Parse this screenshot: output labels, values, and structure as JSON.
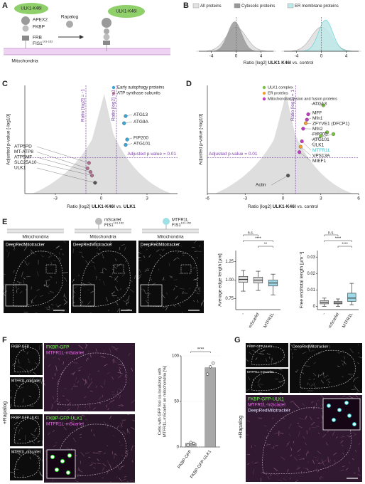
{
  "a": {
    "letter": "A",
    "ulk1": "ULK1-K46I",
    "apex2": "APEX2",
    "fkbp": "FKBP",
    "rapalog": "Rapalog",
    "ulk2": "ULK1-K46I",
    "frb": "FRB",
    "fis1": "FIS1",
    "fis1_sup": "101-152",
    "mitochondria": "Mitochondria"
  },
  "b": {
    "letter": "B",
    "legend": [
      {
        "name": "All proteins",
        "color": "#e3e3e3"
      },
      {
        "name": "Cytosolic proteins",
        "color": "#9a9a9a"
      },
      {
        "name": "ER membrane proteins",
        "color": "#bfe8e8"
      }
    ],
    "xlabel": [
      "Ratio [log2] ",
      "ULK1 K46I",
      " vs. control"
    ],
    "xlim": [
      -6,
      6
    ],
    "xticks": [
      -4,
      0,
      4
    ]
  },
  "c": {
    "letter": "C",
    "legend": [
      {
        "name": "Early autophagy proteins",
        "color": "#3aa6d8"
      },
      {
        "name": "ATP synthase subunits",
        "color": "#b07090"
      }
    ],
    "ylabel": "Adjusted p-value [-log10]",
    "xlabel": [
      "Ratio [log2] ",
      "ULK1-K46I",
      " vs. ",
      "ULK1"
    ],
    "xlim": [
      -5,
      5
    ],
    "ylim": [
      0,
      6
    ],
    "xticks": [
      -3,
      0,
      3
    ],
    "vlines": [
      {
        "value": -1,
        "label": "Ratio [log2] = -1"
      },
      {
        "value": 1,
        "label": "Ratio [log2] = 1"
      }
    ],
    "hline": {
      "value": 2,
      "label": "Adjusted p-value = 0.01"
    },
    "points": [
      {
        "label": "ATG13",
        "x": 1.6,
        "y": 4.3,
        "color": "#3aa6d8"
      },
      {
        "label": "ATG9A",
        "x": 1.5,
        "y": 3.9,
        "color": "#3aa6d8"
      },
      {
        "label": "FIP200",
        "x": 1.7,
        "y": 3.0,
        "color": "#3aa6d8"
      },
      {
        "label": "ATG101",
        "x": 1.6,
        "y": 2.7,
        "color": "#3aa6d8"
      },
      {
        "label": "ATP5PD",
        "x": -0.8,
        "y": 1.7,
        "color": "#b07090"
      },
      {
        "label": "MT-ATP8",
        "x": -0.9,
        "y": 1.4,
        "color": "#b07090"
      },
      {
        "label": "ATP5MF",
        "x": -0.7,
        "y": 1.2,
        "color": "#b07090"
      },
      {
        "label": "SLC25A10",
        "x": -0.6,
        "y": 1.0,
        "color": "#b07090"
      },
      {
        "label": "ULK1",
        "x": -0.4,
        "y": 0.6,
        "color": "#555555"
      }
    ]
  },
  "d": {
    "letter": "D",
    "legend": [
      {
        "name": "ULK1 complex",
        "color": "#7cc242"
      },
      {
        "name": "ER proteins",
        "color": "#f0a030"
      },
      {
        "name": "Mitochondrial fission and fusion proteins",
        "color": "#c03cc0"
      }
    ],
    "ylabel": "Adjusted p-value [-log10]",
    "xlabel": [
      "Ratio [log2] ",
      "ULK1-K46I",
      " vs. control"
    ],
    "xlim": [
      -6,
      6
    ],
    "ylim": [
      0,
      6
    ],
    "xticks": [
      -6,
      -3,
      0,
      3,
      6
    ],
    "vlines": [
      {
        "value": 1,
        "label": "Ratio [log2] = 1"
      }
    ],
    "hline": {
      "value": 2,
      "label": "Adjusted p-value = 0.01"
    },
    "points": [
      {
        "label": "ATG13",
        "x": 3.2,
        "y": 4.9,
        "color": "#7cc242"
      },
      {
        "label": "MFF",
        "x": 2.0,
        "y": 4.4,
        "color": "#c03cc0"
      },
      {
        "label": "Mfn1",
        "x": 1.9,
        "y": 4.1,
        "color": "#c03cc0"
      },
      {
        "label": "ZFYVE1 (DFCP1)",
        "x": 1.8,
        "y": 3.9,
        "color": "#f0a030"
      },
      {
        "label": "Mfn2",
        "x": 1.6,
        "y": 3.6,
        "color": "#c03cc0"
      },
      {
        "label": "FIP200",
        "x": 3.5,
        "y": 3.4,
        "color": "#7cc242"
      },
      {
        "label": "ATG101",
        "x": 4.0,
        "y": 3.3,
        "color": "#7cc242"
      },
      {
        "label": "ULK1",
        "x": 3.0,
        "y": 3.2,
        "color": "#7cc242"
      },
      {
        "label": "MTFR1L",
        "x": 1.5,
        "y": 2.9,
        "color": "#c03cc0",
        "label_color": "#3cc0d0"
      },
      {
        "label": "VPS13A",
        "x": 1.4,
        "y": 2.6,
        "color": "#f0a030"
      },
      {
        "label": "MIEF1",
        "x": 1.3,
        "y": 2.3,
        "color": "#c03cc0"
      },
      {
        "label": "Actin",
        "x": 0.4,
        "y": 1.0,
        "color": "#555555"
      }
    ]
  },
  "e": {
    "letter": "E",
    "mitochondria": [
      "Mitochondria",
      "Mitochondria",
      "Mitochondria"
    ],
    "constructs": [
      {
        "name": "mScarlet",
        "fis1": "FIS1",
        "sup": "101-152"
      },
      {
        "name": "MTFR1L",
        "fis1": "FIS1",
        "sup": "101-152"
      }
    ],
    "images": [
      "DeepRedMitotracker",
      "DeepRedMitotracker",
      "DeepRedMitotracker"
    ],
    "box1": {
      "ylabel": "Average edge length [µm]",
      "categories": [
        "-",
        "mScarlet",
        "MTFR1L"
      ],
      "colors": [
        "#d9d9d9",
        "#d9d9d9",
        "#9fd8e6"
      ],
      "ylim": [
        0.6,
        1.4
      ],
      "yticks": [
        0.75,
        {
          "value": 1,
          "label": "1.00"
        },
        1.25
      ],
      "significance": [
        "n.s.",
        "****",
        "**"
      ],
      "boxes": [
        {
          "low": 0.85,
          "q1": 0.97,
          "median": 1.01,
          "q3": 1.05,
          "high": 1.13
        },
        {
          "low": 0.86,
          "q1": 0.96,
          "median": 1.0,
          "q3": 1.04,
          "high": 1.12
        },
        {
          "low": 0.8,
          "q1": 0.92,
          "median": 0.96,
          "q3": 1.0,
          "high": 1.08
        }
      ]
    },
    "box2": {
      "ylabel": "Free end/total length [µm⁻¹]",
      "categories": [
        "-",
        "mScarlet",
        "MTFR1L"
      ],
      "colors": [
        "#d9d9d9",
        "#d9d9d9",
        "#9fd8e6"
      ],
      "ylim": [
        -0.002,
        0.034
      ],
      "yticks": [
        0,
        0.01,
        0.02,
        0.03
      ],
      "significance": [
        "n.s.",
        "****",
        "****"
      ],
      "boxes": [
        {
          "low": 0,
          "q1": 0.0015,
          "median": 0.0025,
          "q3": 0.0035,
          "high": 0.005
        },
        {
          "low": 0,
          "q1": 0.0015,
          "median": 0.002,
          "q3": 0.003,
          "high": 0.0045
        },
        {
          "low": 0.001,
          "q1": 0.003,
          "median": 0.005,
          "q3": 0.008,
          "high": 0.014
        }
      ]
    }
  },
  "f": {
    "letter": "F",
    "rapalog": "+Rapalog",
    "small": [
      "FKBP-GFP",
      "MTFR1L-mScarlet",
      "FKBP-GFP-ULK1",
      "MTFR1L-mScarlet"
    ],
    "overlay1": [
      "FKBP-GFP",
      "MTFR1L-mScarlet"
    ],
    "overlay2": [
      "FKBP-GFP-ULK1",
      "MTFR1L-mScarlet"
    ],
    "bar": {
      "type": "bar",
      "ylabel": [
        "Cells with GFP foci co-localizing with",
        "MTFR1L-mScarlet on mitochondria [%]"
      ],
      "categories": [
        "FKBP-GFP",
        "FKBP-GFP-ULK1"
      ],
      "values": [
        4,
        87
      ],
      "points": [
        [
          2,
          5,
          4
        ],
        [
          80,
          88,
          92
        ]
      ],
      "color": "#a8a8a8",
      "ylim": [
        0,
        100
      ],
      "yticks": [
        0,
        50,
        100
      ],
      "significance": "****"
    }
  },
  "g": {
    "letter": "G",
    "rapalog": "+Rapalog",
    "small": [
      "FKBP-GFP-ULK1",
      "MTFR1L-mScarlet"
    ],
    "top": "DeepRedMitotracker",
    "overlay": [
      "FKBP-GFP-ULK1",
      "MTFR1L-mScarlet",
      "DeepRedMitotracker"
    ]
  }
}
